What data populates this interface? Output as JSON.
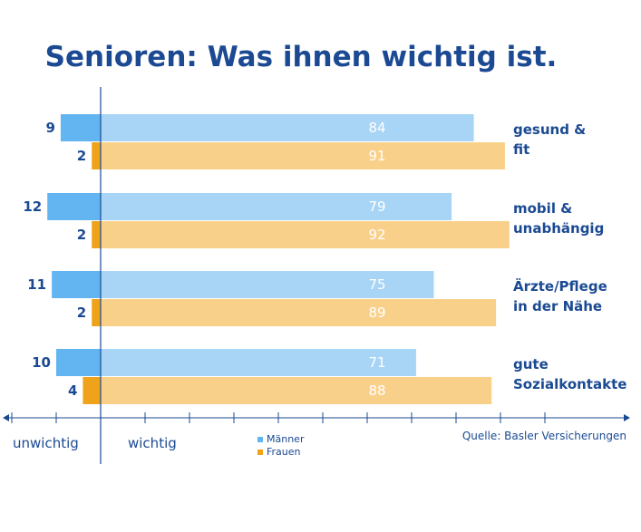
{
  "chart_data": {
    "type": "bar",
    "orientation": "horizontal-diverging",
    "title": "Senioren: Was ihnen wichtig ist.",
    "categories": [
      {
        "label_lines": [
          "gesund &",
          "fit"
        ]
      },
      {
        "label_lines": [
          "mobil &",
          "unabhängig"
        ]
      },
      {
        "label_lines": [
          "Ärzte/Pflege",
          "in der Nähe"
        ]
      },
      {
        "label_lines": [
          "gute",
          "Sozialkontakte"
        ]
      }
    ],
    "series": [
      {
        "name": "Männer",
        "wichtig": [
          84,
          79,
          75,
          71
        ],
        "unwichtig": [
          9,
          12,
          11,
          10
        ],
        "color_wichtig": "#a8d4f6",
        "color_unwichtig": "#62b5f0"
      },
      {
        "name": "Frauen",
        "wichtig": [
          91,
          92,
          89,
          88
        ],
        "unwichtig": [
          2,
          2,
          2,
          4
        ],
        "color_wichtig": "#f9d08a",
        "color_unwichtig": "#eea31b"
      }
    ],
    "axis": {
      "left_label": "unwichtig",
      "right_label": "wichtig",
      "xlim": [
        -22,
        118
      ]
    },
    "legend": {
      "placement": "bottom-center",
      "items": [
        "Männer",
        "Frauen"
      ]
    },
    "source": "Quelle: Basler Versicherungen",
    "text_color": "#1b4a93"
  }
}
